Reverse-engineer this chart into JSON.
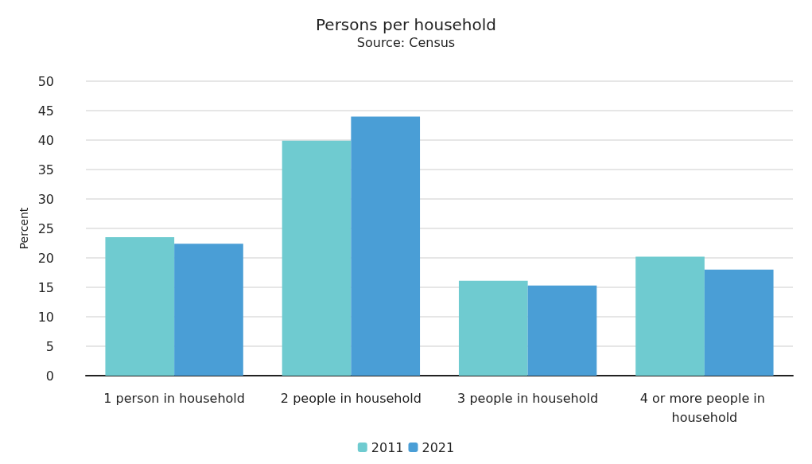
{
  "chart_data": {
    "type": "bar",
    "title": "Persons per household",
    "subtitle": "Source: Census",
    "ylabel": "Percent",
    "categories": [
      "1 person in household",
      "2 people in household",
      "3 people in household",
      "4 or more people in household"
    ],
    "series": [
      {
        "name": "2011",
        "color": "#6fcbd0",
        "values": [
          23.5,
          39.9,
          16.1,
          20.2
        ]
      },
      {
        "name": "2021",
        "color": "#4a9ed6",
        "values": [
          22.4,
          44.0,
          15.3,
          18.0
        ]
      }
    ],
    "ylim": [
      0,
      50
    ],
    "yticks": [
      0,
      5,
      10,
      15,
      20,
      25,
      30,
      35,
      40,
      45,
      50
    ],
    "grid": "y",
    "legend": "bottom"
  }
}
